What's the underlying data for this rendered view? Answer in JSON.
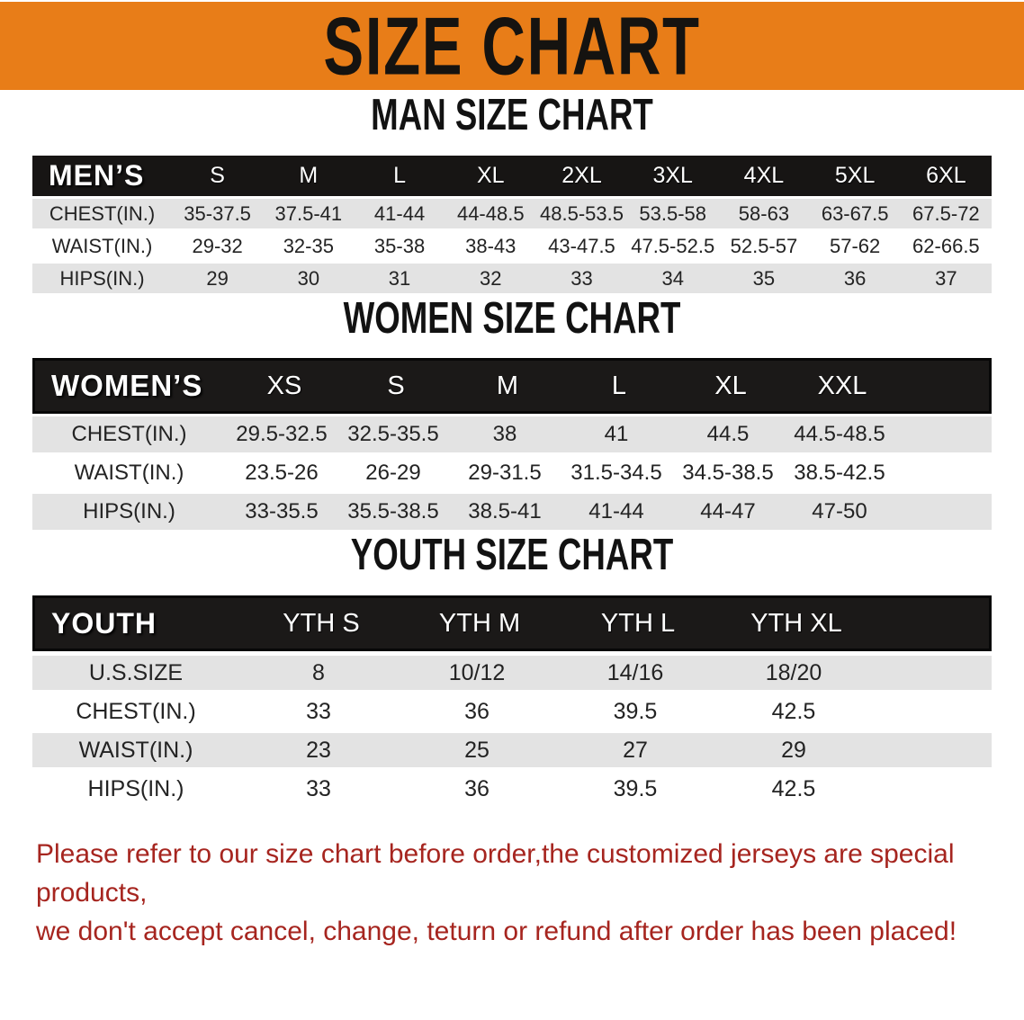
{
  "banner": {
    "title": "SIZE CHART"
  },
  "colors": {
    "banner_orange": "#E87D18",
    "header_black": "#171514",
    "stripe_gray": "#E3E3E3",
    "row_white": "#FFFFFF",
    "disclaimer_red": "#A6251F",
    "title_black": "#151310"
  },
  "man": {
    "heading": "MAN SIZE CHART",
    "table": {
      "label": "MEN’S",
      "sizes": [
        "S",
        "M",
        "L",
        "XL",
        "2XL",
        "3XL",
        "4XL",
        "5XL",
        "6XL"
      ],
      "rows": [
        {
          "label": "CHEST(IN.)",
          "values": [
            "35-37.5",
            "37.5-41",
            "41-44",
            "44-48.5",
            "48.5-53.5",
            "53.5-58",
            "58-63",
            "63-67.5",
            "67.5-72"
          ]
        },
        {
          "label": "WAIST(IN.)",
          "values": [
            "29-32",
            "32-35",
            "35-38",
            "38-43",
            "43-47.5",
            "47.5-52.5",
            "52.5-57",
            "57-62",
            "62-66.5"
          ]
        },
        {
          "label": "HIPS(IN.)",
          "values": [
            "29",
            "30",
            "31",
            "32",
            "33",
            "34",
            "35",
            "36",
            "37"
          ]
        }
      ]
    }
  },
  "women": {
    "heading": "WOMEN SIZE CHART",
    "table": {
      "label": "WOMEN’S",
      "sizes": [
        "XS",
        "S",
        "M",
        "L",
        "XL",
        "XXL"
      ],
      "rows": [
        {
          "label": "CHEST(IN.)",
          "values": [
            "29.5-32.5",
            "32.5-35.5",
            "38",
            "41",
            "44.5",
            "44.5-48.5"
          ]
        },
        {
          "label": "WAIST(IN.)",
          "values": [
            "23.5-26",
            "26-29",
            "29-31.5",
            "31.5-34.5",
            "34.5-38.5",
            "38.5-42.5"
          ]
        },
        {
          "label": "HIPS(IN.)",
          "values": [
            "33-35.5",
            "35.5-38.5",
            "38.5-41",
            "41-44",
            "44-47",
            "47-50"
          ]
        }
      ]
    }
  },
  "youth": {
    "heading": "YOUTH SIZE CHART",
    "table": {
      "label": "YOUTH",
      "sizes": [
        "YTH S",
        "YTH M",
        "YTH L",
        "YTH XL"
      ],
      "rows": [
        {
          "label": "U.S.SIZE",
          "values": [
            "8",
            "10/12",
            "14/16",
            "18/20"
          ]
        },
        {
          "label": "CHEST(IN.)",
          "values": [
            "33",
            "36",
            "39.5",
            "42.5"
          ]
        },
        {
          "label": "WAIST(IN.)",
          "values": [
            "23",
            "25",
            "27",
            "29"
          ]
        },
        {
          "label": "HIPS(IN.)",
          "values": [
            "33",
            "36",
            "39.5",
            "42.5"
          ]
        }
      ]
    }
  },
  "disclaimer": {
    "line1": "Please refer to our size chart before order,the customized jerseys are special products,",
    "line2": "we don't accept cancel, change, teturn or refund after order has been placed!"
  }
}
